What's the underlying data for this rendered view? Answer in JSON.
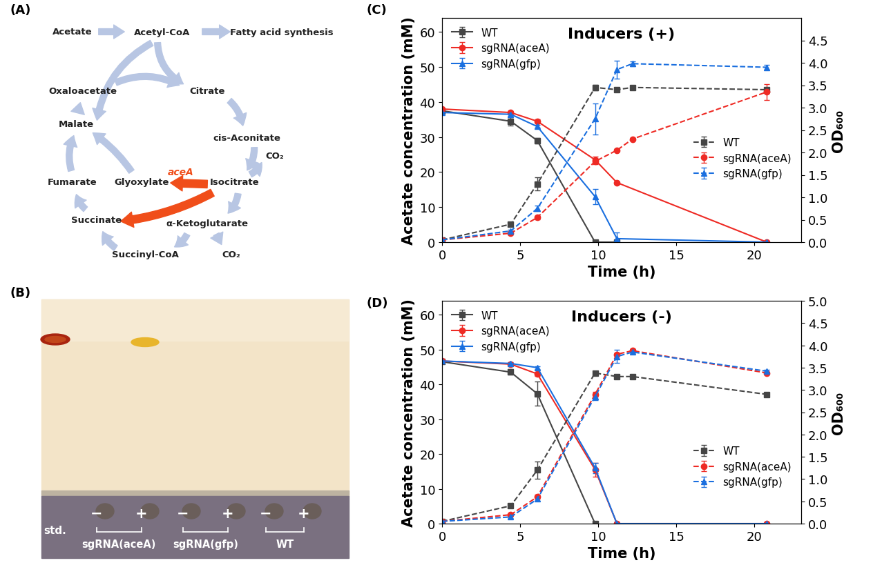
{
  "panel_labels": [
    "(A)",
    "(B)",
    "(C)",
    "(D)"
  ],
  "diagram": {
    "nodes": [
      "Acetate",
      "Acetyl-CoA",
      "Fatty acid synthesis",
      "Citrate",
      "cis-Aconitate",
      "Isocitrate",
      "α-Ketoglutarate",
      "CO₂",
      "CO₂",
      "Succinyl-CoA",
      "Succinate",
      "Fumarate",
      "Malate",
      "Oxaloacetate",
      "Glyoxylate"
    ],
    "enzyme": "aceA"
  },
  "photo": {
    "lane_labels": [
      "std.",
      "−",
      "+",
      "−",
      "+",
      "−",
      "+"
    ],
    "group_labels": [
      "sgRNA(aceA)",
      "sgRNA(gfp)",
      "WT"
    ]
  },
  "chart_data": [
    {
      "type": "line",
      "title": "Inducers (+)",
      "x_label": "Time (h)",
      "y_label": "Acetate concentration (mM)",
      "y2_label": "OD₆₀₀",
      "xlim": [
        0,
        23
      ],
      "xticks": [
        0,
        5,
        10,
        15,
        20
      ],
      "ylim": [
        0,
        64
      ],
      "yticks": [
        0,
        10,
        20,
        30,
        40,
        50,
        60
      ],
      "y2lim": [
        0,
        5
      ],
      "y2ticks": [
        {
          "value": 0,
          "label": "0.0"
        },
        {
          "value": 0.5,
          "label": "0.5"
        },
        {
          "value": 1,
          "label": "1.0"
        },
        {
          "value": 1.5,
          "label": "1.5"
        },
        {
          "value": 2,
          "label": "2.0"
        },
        {
          "value": 2.5,
          "label": "2.5"
        },
        {
          "value": 3,
          "label": "3.0"
        },
        {
          "value": 3.5,
          "label": "3.5"
        },
        {
          "value": 4,
          "label": "4.0"
        },
        {
          "value": 4.5,
          "label": "4.5"
        }
      ],
      "series": [
        {
          "name": "WT",
          "color": "#454545",
          "marker": "square",
          "line_style": "solid",
          "legend": "upper left",
          "x": [
            0,
            4.4,
            6.1,
            9.8,
            11.2
          ],
          "values": [
            37.5,
            34.5,
            29.0,
            0,
            0
          ],
          "errors": [
            0.5,
            1.2,
            0.8,
            0.3,
            0.3
          ]
        },
        {
          "name": "sgRNA(aceA)",
          "color": "#ee2a24",
          "marker": "circle",
          "line_style": "solid",
          "legend": "upper left",
          "x": [
            0,
            4.4,
            6.1,
            9.8,
            11.2,
            20.8
          ],
          "values": [
            38.0,
            37.0,
            34.5,
            23.5,
            17.0,
            0
          ],
          "errors": [
            0.3,
            0.5,
            0.5,
            1.0,
            0.3,
            0.3
          ]
        },
        {
          "name": "sgRNA(gfp)",
          "color": "#1a6fdf",
          "marker": "triangle",
          "line_style": "solid",
          "legend": "upper left",
          "x": [
            0,
            4.4,
            6.1,
            9.8,
            11.2,
            20.8
          ],
          "values": [
            37.0,
            36.5,
            33.0,
            13.0,
            1.0,
            0
          ],
          "errors": [
            0.3,
            0.5,
            0.4,
            2.2,
            1.8,
            0.2
          ]
        },
        {
          "name": "WT",
          "color": "#454545",
          "marker": "square",
          "line_style": "dashed",
          "legend": "lower right",
          "axis": "y2",
          "x": [
            0,
            4.4,
            6.1,
            9.8,
            11.2,
            12.2,
            20.8
          ],
          "values": [
            0.05,
            0.4,
            1.3,
            3.45,
            3.4,
            3.45,
            3.4
          ],
          "errors": [
            0.01,
            0.05,
            0.15,
            0.06,
            0.03,
            0.05,
            0.02
          ]
        },
        {
          "name": "sgRNA(aceA)",
          "color": "#ee2a24",
          "marker": "circle",
          "line_style": "dashed",
          "legend": "lower right",
          "axis": "y2",
          "x": [
            0,
            4.4,
            6.1,
            9.8,
            11.2,
            12.2,
            20.8
          ],
          "values": [
            0.05,
            0.2,
            0.55,
            1.8,
            2.05,
            2.3,
            3.35
          ],
          "errors": [
            0.01,
            0.03,
            0.04,
            0.06,
            0.03,
            0.03,
            0.18
          ]
        },
        {
          "name": "sgRNA(gfp)",
          "color": "#1a6fdf",
          "marker": "triangle",
          "line_style": "dashed",
          "legend": "lower right",
          "axis": "y2",
          "x": [
            0,
            4.4,
            6.1,
            9.8,
            11.2,
            12.2,
            20.8
          ],
          "values": [
            0.05,
            0.25,
            0.75,
            2.75,
            3.85,
            3.98,
            3.9
          ],
          "errors": [
            0.01,
            0.02,
            0.06,
            0.35,
            0.2,
            0.05,
            0.05
          ]
        }
      ]
    },
    {
      "type": "line",
      "title": "Inducers (-)",
      "x_label": "Time (h)",
      "y_label": "Acetate concentration (mM)",
      "y2_label": "OD₆₀₀",
      "xlim": [
        0,
        23
      ],
      "xticks": [
        0,
        5,
        10,
        15,
        20
      ],
      "ylim": [
        0,
        64
      ],
      "yticks": [
        0,
        10,
        20,
        30,
        40,
        50,
        60
      ],
      "y2lim": [
        0,
        5
      ],
      "y2ticks": [
        {
          "value": 0,
          "label": "0.0"
        },
        {
          "value": 0.5,
          "label": "0.5"
        },
        {
          "value": 1,
          "label": "1.0"
        },
        {
          "value": 1.5,
          "label": "1.5"
        },
        {
          "value": 2,
          "label": "2.0"
        },
        {
          "value": 2.5,
          "label": "2.5"
        },
        {
          "value": 3,
          "label": "3.0"
        },
        {
          "value": 3.5,
          "label": "3.5"
        },
        {
          "value": 4,
          "label": "4.0"
        },
        {
          "value": 4.5,
          "label": "4.5"
        },
        {
          "value": 5,
          "label": "5.0"
        }
      ],
      "series": [
        {
          "name": "WT",
          "color": "#454545",
          "marker": "square",
          "line_style": "solid",
          "legend": "upper left",
          "x": [
            0,
            4.4,
            6.1,
            9.8
          ],
          "values": [
            46.5,
            43.5,
            37.3,
            0
          ],
          "errors": [
            0.3,
            0.8,
            3.5,
            0.2
          ]
        },
        {
          "name": "sgRNA(aceA)",
          "color": "#ee2a24",
          "marker": "circle",
          "line_style": "solid",
          "legend": "upper left",
          "x": [
            0,
            4.4,
            6.1,
            9.8,
            11.2,
            20.8
          ],
          "values": [
            46.7,
            45.8,
            43.0,
            15.5,
            0,
            0
          ],
          "errors": [
            0.3,
            0.4,
            0.5,
            2.0,
            0.3,
            0.2
          ]
        },
        {
          "name": "sgRNA(gfp)",
          "color": "#1a6fdf",
          "marker": "triangle",
          "line_style": "solid",
          "legend": "upper left",
          "x": [
            0,
            4.4,
            6.1,
            9.8,
            11.2,
            20.8
          ],
          "values": [
            46.7,
            46.0,
            44.8,
            16.0,
            0,
            0
          ],
          "errors": [
            0.3,
            0.4,
            0.4,
            1.5,
            0.3,
            0.2
          ]
        },
        {
          "name": "WT",
          "color": "#454545",
          "marker": "square",
          "line_style": "dashed",
          "legend": "lower right",
          "axis": "y2",
          "x": [
            0,
            4.4,
            6.1,
            9.8,
            11.2,
            12.2,
            20.8
          ],
          "values": [
            0.05,
            0.4,
            1.2,
            3.38,
            3.3,
            3.3,
            2.9
          ],
          "errors": [
            0.01,
            0.05,
            0.2,
            0.04,
            0.03,
            0.03,
            0.02
          ]
        },
        {
          "name": "sgRNA(aceA)",
          "color": "#ee2a24",
          "marker": "circle",
          "line_style": "dashed",
          "legend": "lower right",
          "axis": "y2",
          "x": [
            0,
            4.4,
            6.1,
            9.8,
            11.2,
            12.2,
            20.8
          ],
          "values": [
            0.05,
            0.2,
            0.6,
            2.9,
            3.8,
            3.88,
            3.38
          ],
          "errors": [
            0.01,
            0.02,
            0.05,
            0.05,
            0.03,
            0.03,
            0.02
          ]
        },
        {
          "name": "sgRNA(gfp)",
          "color": "#1a6fdf",
          "marker": "triangle",
          "line_style": "dashed",
          "legend": "lower right",
          "axis": "y2",
          "x": [
            0,
            4.4,
            6.1,
            9.8,
            11.2,
            12.2,
            20.8
          ],
          "values": [
            0.05,
            0.15,
            0.55,
            2.85,
            3.75,
            3.85,
            3.42
          ],
          "errors": [
            0.01,
            0.02,
            0.04,
            0.08,
            0.15,
            0.03,
            0.03
          ]
        }
      ]
    }
  ]
}
